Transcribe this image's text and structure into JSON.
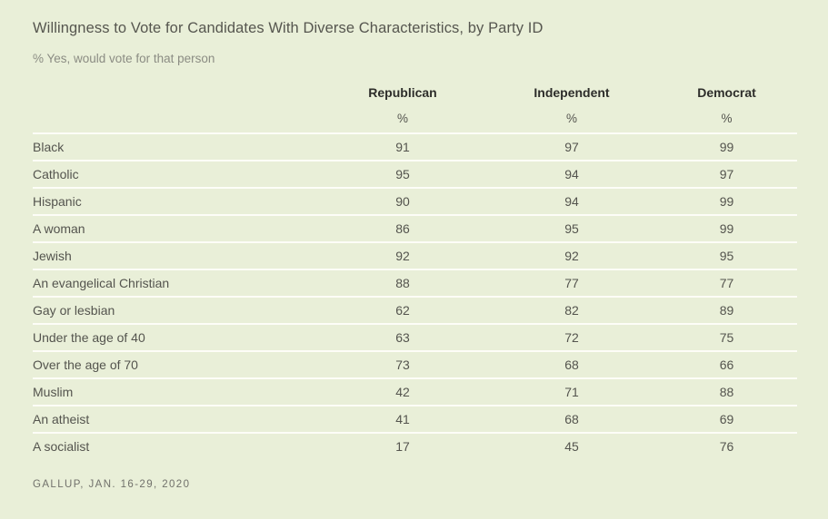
{
  "colors": {
    "background": "#E9EFD8",
    "row_separator": "#FDFDF7",
    "title_text": "#56564F",
    "subtitle_text": "#8B8C83",
    "header_text": "#2D2D2A",
    "body_text": "#54544E",
    "source_text": "#71716B"
  },
  "chart_data": {
    "type": "table",
    "title": "Willingness to Vote for Candidates With Diverse Characteristics, by Party ID",
    "subtitle": "% Yes, would vote for that person",
    "unit": "%",
    "columns": [
      "Republican",
      "Independent",
      "Democrat"
    ],
    "rows": [
      {
        "label": "Black",
        "values": [
          91,
          97,
          99
        ]
      },
      {
        "label": "Catholic",
        "values": [
          95,
          94,
          97
        ]
      },
      {
        "label": "Hispanic",
        "values": [
          90,
          94,
          99
        ]
      },
      {
        "label": "A woman",
        "values": [
          86,
          95,
          99
        ]
      },
      {
        "label": "Jewish",
        "values": [
          92,
          92,
          95
        ]
      },
      {
        "label": "An evangelical Christian",
        "values": [
          88,
          77,
          77
        ]
      },
      {
        "label": "Gay or lesbian",
        "values": [
          62,
          82,
          89
        ]
      },
      {
        "label": "Under the age of 40",
        "values": [
          63,
          72,
          75
        ]
      },
      {
        "label": "Over the age of 70",
        "values": [
          73,
          68,
          66
        ]
      },
      {
        "label": "Muslim",
        "values": [
          42,
          71,
          88
        ]
      },
      {
        "label": "An atheist",
        "values": [
          41,
          68,
          69
        ]
      },
      {
        "label": "A socialist",
        "values": [
          17,
          45,
          76
        ]
      }
    ],
    "source": "GALLUP, JAN. 16-29, 2020"
  }
}
